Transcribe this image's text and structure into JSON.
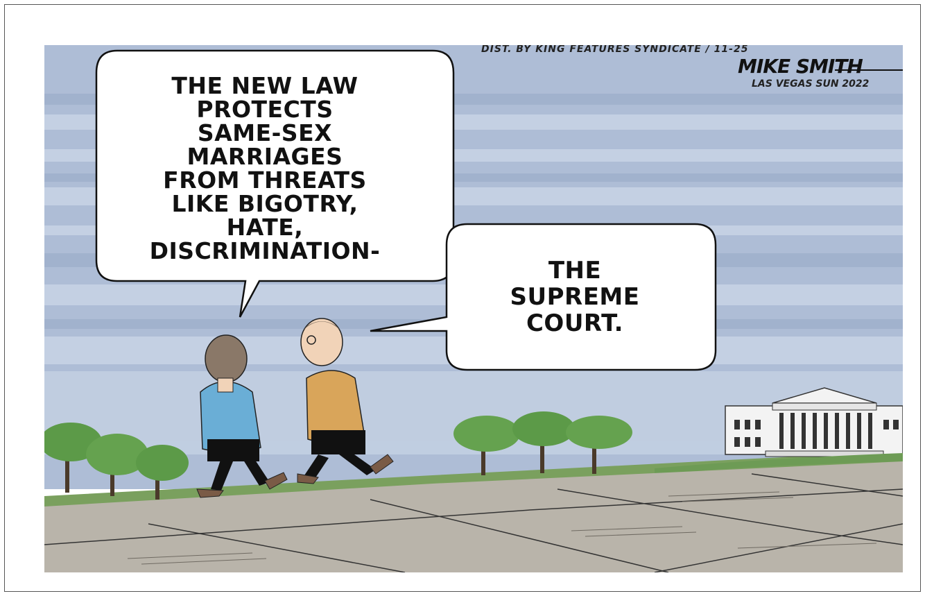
{
  "cartoon": {
    "speech_bubble_1": "THE NEW LAW\nPROTECTS\nSAME-SEX\nMARRIAGES\nFROM THREATS\nLIKE BIGOTRY,\nHATE, DISCRIMINATION-",
    "speech_bubble_2": "THE\nSUPREME\nCOURT.",
    "distribution_credit": "DIST. BY KING FEATURES SYNDICATE / 11-25",
    "artist_signature": "MIKE SMITH",
    "artist_publication": "LAS VEGAS SUN 2022"
  },
  "colors": {
    "sky": "#aebdd6",
    "sky_band": "#c9d5e6",
    "pavement": "#b9b4aa",
    "shirt_left": "#6aaed6",
    "shirt_right": "#d9a55a",
    "trees": "#5c9a48",
    "building": "#f3f3f3"
  },
  "icons": {
    "character_left": "man-in-blue-shirt",
    "character_right": "man-with-glasses-in-orange-shirt",
    "building": "supreme-court-building"
  }
}
